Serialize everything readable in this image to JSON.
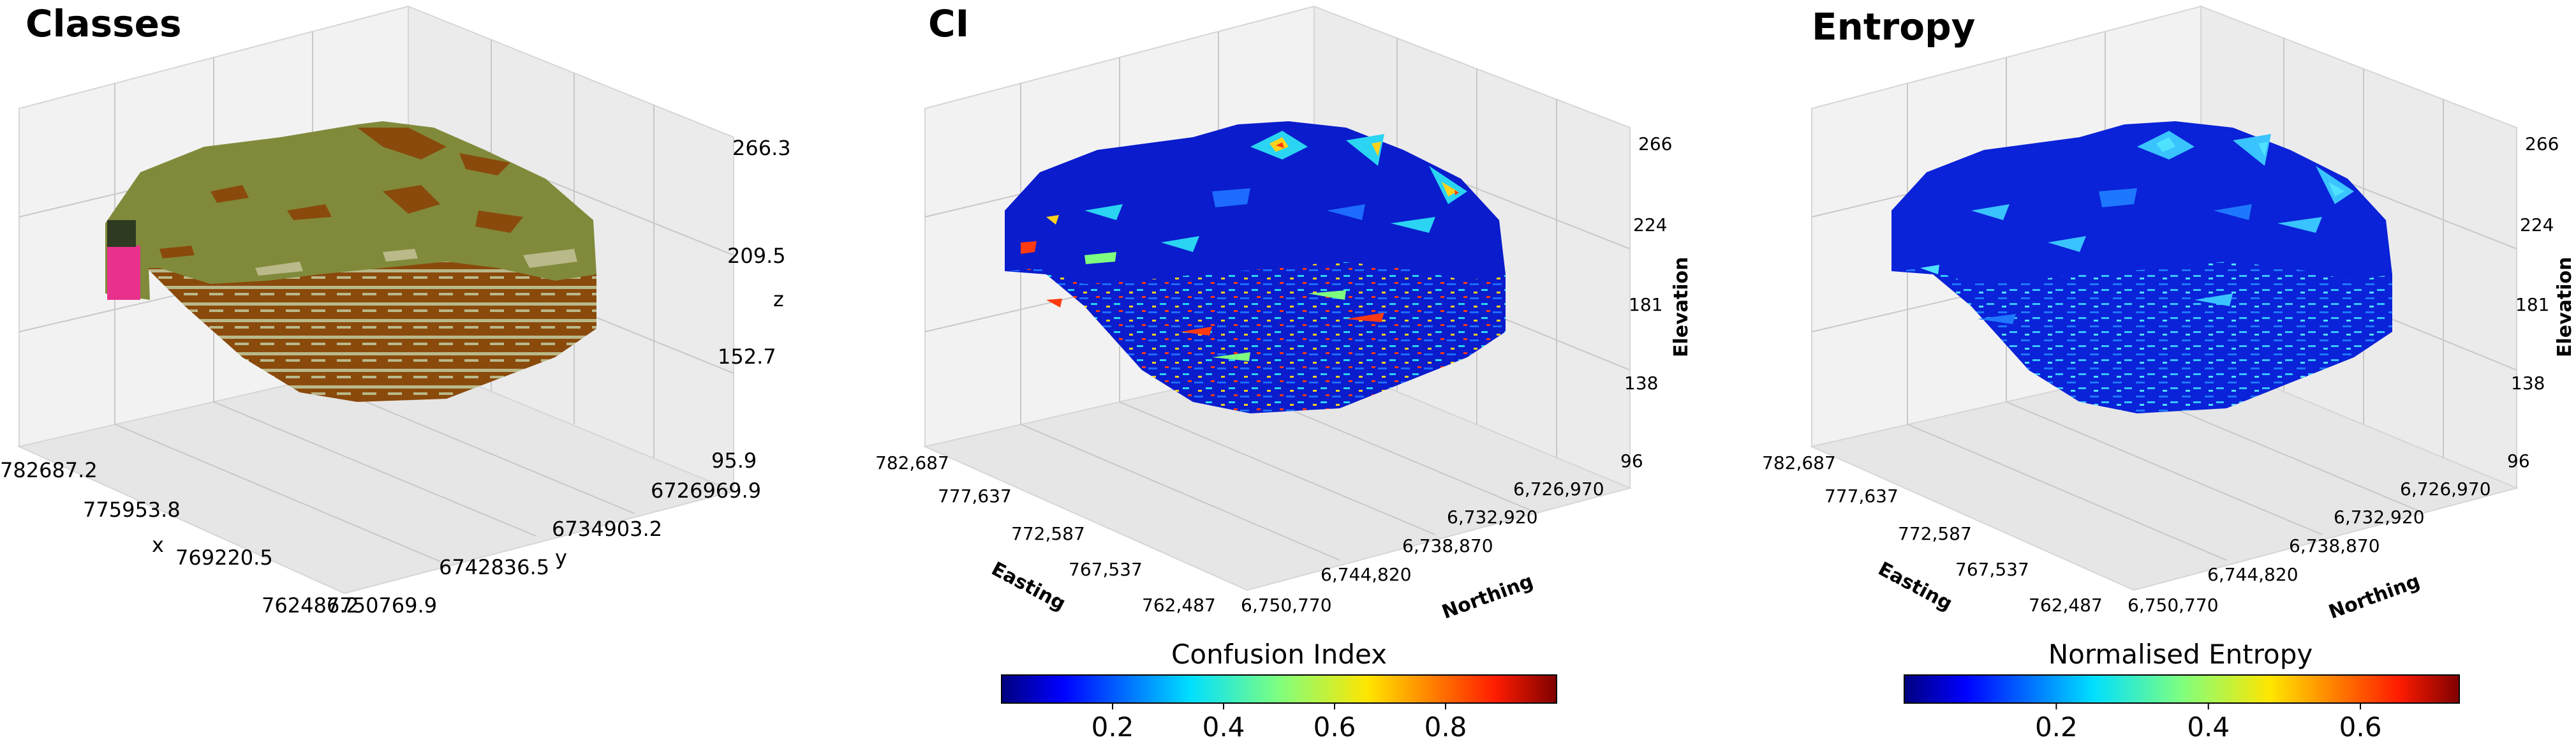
{
  "chart_data": [
    {
      "type": "3d-voxel",
      "title": "Classes",
      "xlabel": "x",
      "ylabel": "y",
      "zlabel": "z",
      "x_ticks": [
        "782687.2",
        "775953.8",
        "769220.5",
        "762487.2"
      ],
      "y_ticks": [
        "6726969.9",
        "6734903.2",
        "6742836.5",
        "6750769.9"
      ],
      "z_ticks": [
        "266.3",
        "209.5",
        "152.7",
        "95.9"
      ],
      "colors": {
        "top": "#808a3a",
        "layer_dark": "#8a4a0c",
        "layer_light": "#b9b98a",
        "accent_pink": "#e8308c",
        "accent_dark": "#2e3a22"
      }
    },
    {
      "type": "3d-voxel",
      "title": "CI",
      "xlabel": "Easting",
      "ylabel": "Northing",
      "zlabel": "Elevation",
      "x_ticks": [
        "782,687",
        "777,637",
        "772,587",
        "767,537",
        "762,487"
      ],
      "y_ticks": [
        "6,726,970",
        "6,732,920",
        "6,738,870",
        "6,744,820",
        "6,750,770"
      ],
      "z_ticks": [
        "266",
        "224",
        "181",
        "138",
        "96"
      ],
      "colorbar": {
        "label": "Confusion Index",
        "ticks": [
          "0.2",
          "0.4",
          "0.6",
          "0.8"
        ],
        "tick_values": [
          0.2,
          0.4,
          0.6,
          0.8
        ],
        "range": [
          0,
          1
        ],
        "colormap": "jet"
      }
    },
    {
      "type": "3d-voxel",
      "title": "Entropy",
      "xlabel": "Easting",
      "ylabel": "Northing",
      "zlabel": "Elevation",
      "x_ticks": [
        "782,687",
        "777,637",
        "772,587",
        "767,537",
        "762,487"
      ],
      "y_ticks": [
        "6,726,970",
        "6,732,920",
        "6,738,870",
        "6,744,820",
        "6,750,770"
      ],
      "z_ticks": [
        "266",
        "224",
        "181",
        "138",
        "96"
      ],
      "colorbar": {
        "label": "Normalised Entropy",
        "ticks": [
          "0.2",
          "0.4",
          "0.6"
        ],
        "tick_values": [
          0.2,
          0.4,
          0.6
        ],
        "range": [
          0,
          0.73
        ],
        "colormap": "jet"
      }
    }
  ]
}
